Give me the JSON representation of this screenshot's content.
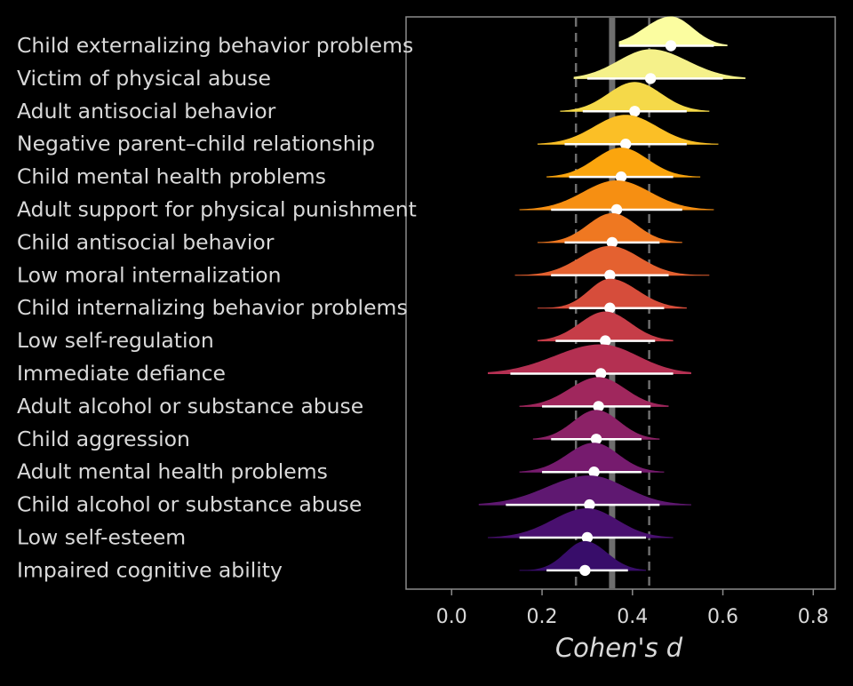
{
  "chart_data": {
    "type": "ridgeline",
    "title": "",
    "xlabel": "Cohen's d",
    "ylabel": "",
    "xlim": [
      -0.1,
      0.85
    ],
    "x_ticks": [
      "0.0",
      "0.2",
      "0.4",
      "0.6",
      "0.8"
    ],
    "x_tick_values": [
      0.0,
      0.2,
      0.4,
      0.6,
      0.8
    ],
    "grid": false,
    "legend": "none",
    "reference_lines": [
      {
        "kind": "solid",
        "value": 0.355
      },
      {
        "kind": "dashed",
        "value": 0.275
      },
      {
        "kind": "dashed",
        "value": 0.437
      }
    ],
    "categories": [
      "Child externalizing behavior problems",
      "Victim of physical abuse",
      "Adult antisocial behavior",
      "Negative parent–child relationship",
      "Child mental health problems",
      "Adult support for physical punishment",
      "Child antisocial behavior",
      "Low moral internalization",
      "Child internalizing behavior problems",
      "Low self-regulation",
      "Immediate defiance",
      "Adult alcohol or substance abuse",
      "Child aggression",
      "Adult mental health problems",
      "Child alcohol or substance abuse",
      "Low self-esteem",
      "Impaired cognitive ability"
    ],
    "series": [
      {
        "estimate": 0.485,
        "ci": [
          0.37,
          0.58
        ],
        "range": [
          0.37,
          0.61
        ],
        "color": "#fbfda0"
      },
      {
        "estimate": 0.44,
        "ci": [
          0.3,
          0.6
        ],
        "range": [
          0.27,
          0.65
        ],
        "color": "#f5f18a"
      },
      {
        "estimate": 0.405,
        "ci": [
          0.29,
          0.52
        ],
        "range": [
          0.24,
          0.57
        ],
        "color": "#f5d949"
      },
      {
        "estimate": 0.385,
        "ci": [
          0.25,
          0.52
        ],
        "range": [
          0.19,
          0.59
        ],
        "color": "#fbbf26"
      },
      {
        "estimate": 0.375,
        "ci": [
          0.26,
          0.49
        ],
        "range": [
          0.21,
          0.55
        ],
        "color": "#fba50e"
      },
      {
        "estimate": 0.365,
        "ci": [
          0.22,
          0.51
        ],
        "range": [
          0.15,
          0.58
        ],
        "color": "#f68f12"
      },
      {
        "estimate": 0.355,
        "ci": [
          0.25,
          0.46
        ],
        "range": [
          0.19,
          0.51
        ],
        "color": "#ef7821"
      },
      {
        "estimate": 0.35,
        "ci": [
          0.22,
          0.48
        ],
        "range": [
          0.14,
          0.57
        ],
        "color": "#e46130"
      },
      {
        "estimate": 0.35,
        "ci": [
          0.26,
          0.47
        ],
        "range": [
          0.19,
          0.52
        ],
        "color": "#d64d3b"
      },
      {
        "estimate": 0.34,
        "ci": [
          0.23,
          0.45
        ],
        "range": [
          0.19,
          0.49
        ],
        "color": "#c63d48"
      },
      {
        "estimate": 0.33,
        "ci": [
          0.13,
          0.49
        ],
        "range": [
          0.08,
          0.53
        ],
        "color": "#b43052"
      },
      {
        "estimate": 0.325,
        "ci": [
          0.2,
          0.44
        ],
        "range": [
          0.15,
          0.48
        ],
        "color": "#a0275d"
      },
      {
        "estimate": 0.32,
        "ci": [
          0.22,
          0.42
        ],
        "range": [
          0.18,
          0.46
        ],
        "color": "#8c2267"
      },
      {
        "estimate": 0.315,
        "ci": [
          0.2,
          0.42
        ],
        "range": [
          0.15,
          0.47
        ],
        "color": "#761b6e"
      },
      {
        "estimate": 0.305,
        "ci": [
          0.12,
          0.46
        ],
        "range": [
          0.06,
          0.53
        ],
        "color": "#5f1871"
      },
      {
        "estimate": 0.3,
        "ci": [
          0.15,
          0.43
        ],
        "range": [
          0.08,
          0.49
        ],
        "color": "#49106f"
      },
      {
        "estimate": 0.295,
        "ci": [
          0.21,
          0.39
        ],
        "range": [
          0.15,
          0.43
        ],
        "color": "#380d6a"
      }
    ]
  }
}
